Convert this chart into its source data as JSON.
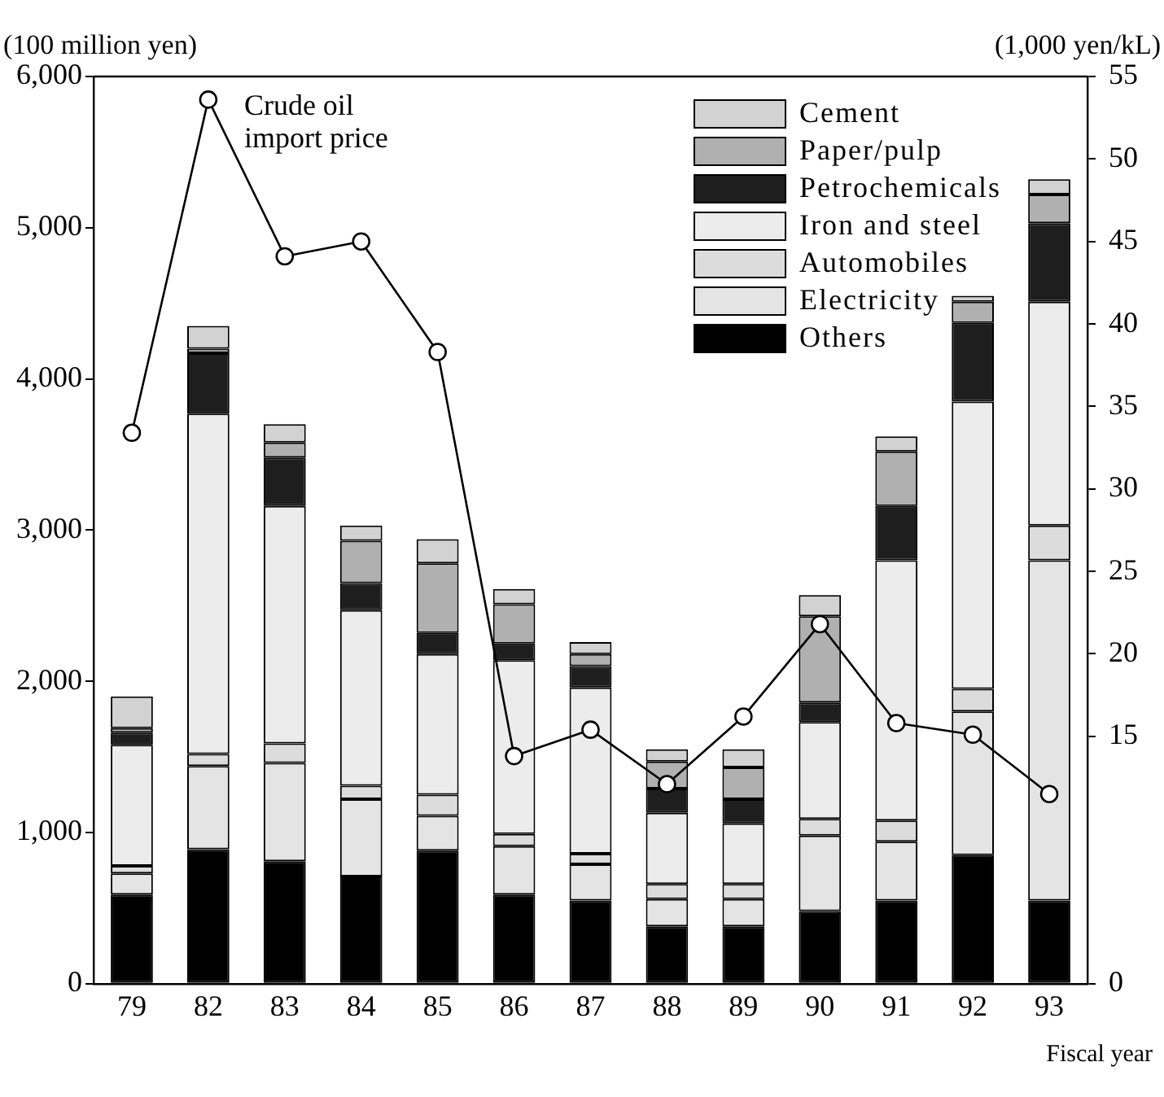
{
  "chart_data": {
    "type": "bar",
    "stacked": true,
    "ylabel": "(100 million yen)",
    "y2label": "(1,000 yen/kL)",
    "xlabel": "Fiscal year",
    "categories": [
      "79",
      "82",
      "83",
      "84",
      "85",
      "86",
      "87",
      "88",
      "89",
      "90",
      "91",
      "92",
      "93"
    ],
    "ylim": [
      0,
      6000
    ],
    "yticks": [
      {
        "value": 0,
        "label": "0"
      },
      {
        "value": 1000,
        "label": "1,000"
      },
      {
        "value": 2000,
        "label": "2,000"
      },
      {
        "value": 3000,
        "label": "3,000"
      },
      {
        "value": 4000,
        "label": "4,000"
      },
      {
        "value": 5000,
        "label": "5,000"
      },
      {
        "value": 6000,
        "label": "6,000"
      }
    ],
    "y2lim": [
      0,
      55
    ],
    "y2ticks": [
      0,
      15,
      20,
      25,
      30,
      35,
      40,
      45,
      50,
      55
    ],
    "legend": "top right",
    "grid": false,
    "marker": "circle",
    "series": [
      {
        "name": "Others",
        "color": "#000000",
        "values": [
          590,
          890,
          810,
          710,
          880,
          590,
          550,
          380,
          380,
          480,
          550,
          850,
          550
        ]
      },
      {
        "name": "Electricity",
        "color": "#e4e4e4",
        "values": [
          140,
          550,
          650,
          510,
          230,
          320,
          240,
          180,
          180,
          500,
          390,
          950,
          2250
        ]
      },
      {
        "name": "Automobiles",
        "color": "#dcdcdc",
        "values": [
          50,
          80,
          130,
          90,
          140,
          80,
          70,
          100,
          100,
          110,
          140,
          150,
          230
        ]
      },
      {
        "name": "Iron and steel",
        "color": "#ececec",
        "values": [
          800,
          2250,
          1570,
          1160,
          930,
          1150,
          1100,
          470,
          400,
          640,
          1720,
          1900,
          1480
        ]
      },
      {
        "name": "Petrochemicals",
        "color": "#1e1e1e",
        "values": [
          80,
          400,
          320,
          180,
          140,
          110,
          140,
          160,
          160,
          130,
          360,
          520,
          520
        ]
      },
      {
        "name": "Paper/pulp",
        "color": "#b0b0b0",
        "values": [
          30,
          30,
          100,
          280,
          460,
          260,
          80,
          180,
          210,
          570,
          360,
          140,
          190
        ]
      },
      {
        "name": "Cement",
        "color": "#d2d2d2",
        "values": [
          210,
          150,
          120,
          100,
          160,
          100,
          80,
          80,
          120,
          140,
          100,
          40,
          100
        ]
      },
      {
        "name": "Crude oil import price",
        "type": "line",
        "axis": "y2",
        "color": "#000000",
        "values": [
          33.4,
          53.6,
          44.1,
          45.0,
          38.3,
          13.8,
          15.4,
          12.1,
          16.2,
          21.8,
          15.8,
          15.1,
          11.5
        ]
      }
    ]
  }
}
